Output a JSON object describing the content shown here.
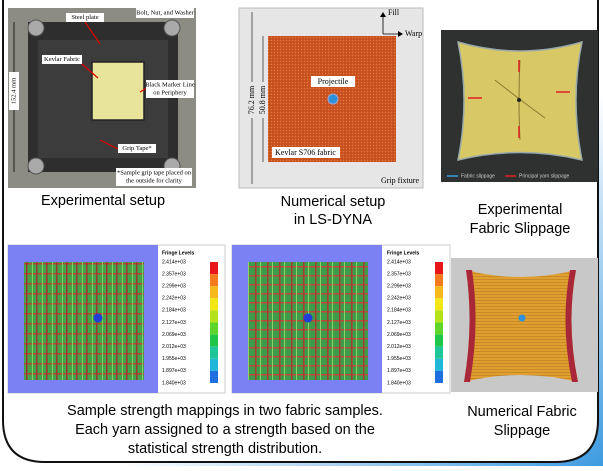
{
  "experimental_setup": {
    "caption": "Experimental setup",
    "steel_plate": "Steel plate",
    "bolt": "Bolt, Nut, and Washer",
    "fabric": "Kevlar Fabric",
    "marker": [
      "Black Marker Line",
      "on Periphery"
    ],
    "dimension": "152.4 mm",
    "grip_tape": "Grip Tape*",
    "note": [
      "*Sample grip tape placed on",
      "the outside for clarity"
    ]
  },
  "numerical_setup": {
    "caption": [
      "Numerical setup",
      "in LS-DYNA"
    ],
    "fill": "Fill",
    "warp": "Warp",
    "outer_dimension": "76.2 mm",
    "inner_dimension": "50.8 mm",
    "projectile": "Projectile",
    "fabric": "Kevlar S706 fabric",
    "fixture": "Grip fixture"
  },
  "experimental_slippage": {
    "caption": [
      "Experimental",
      "Fabric Slippage"
    ],
    "legend": [
      "Fabric slippage",
      "Principal yarn slippage"
    ]
  },
  "strength_mappings": {
    "fringe_title": "Fringe Levels",
    "fringe_levels": [
      "2.414e+03",
      "2.357e+03",
      "2.299e+03",
      "2.242e+03",
      "2.184e+03",
      "2.127e+03",
      "2.069e+03",
      "2.012e+03",
      "1.955e+03",
      "1.897e+03",
      "1.840e+03"
    ],
    "caption": [
      "Sample strength mappings in two fabric samples.",
      "Each yarn assigned to a strength based on the",
      "statistical strength distribution."
    ]
  },
  "numerical_slippage": {
    "caption": [
      "Numerical Fabric",
      "Slippage"
    ]
  }
}
